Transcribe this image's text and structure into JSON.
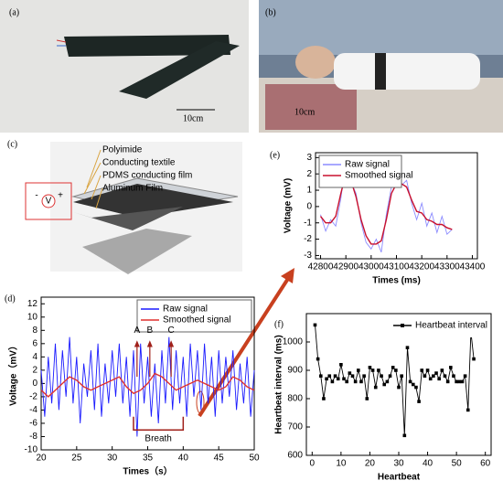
{
  "photos": {
    "a": {
      "label": "(a)",
      "scale": "10cm"
    },
    "b": {
      "label": "(b)",
      "scale": "10cm"
    }
  },
  "diagram": {
    "label": "(c)",
    "layers": [
      "Polyimide",
      "Conducting textile",
      "PDMS conducting film",
      "Aluminum Film"
    ],
    "meter": [
      "-",
      "V",
      "+"
    ]
  },
  "chart_data": [
    {
      "type": "line",
      "label": "(d)",
      "xlabel": "Times（s）",
      "ylabel": "Voltage（mV）",
      "xlim": [
        20,
        50
      ],
      "xticks": [
        20,
        25,
        30,
        35,
        40,
        45,
        50
      ],
      "ylim": [
        -10,
        13
      ],
      "yticks": [
        -10,
        -8,
        -6,
        -4,
        -2,
        0,
        2,
        4,
        6,
        8,
        10,
        12
      ],
      "legend": "upper right",
      "annotations": [
        "A",
        "B",
        "C",
        "Breath"
      ],
      "series": [
        {
          "name": "Raw signal",
          "color": "#1a1aff",
          "x": [
            20,
            20.5,
            21,
            21.5,
            22,
            22.5,
            23,
            23.5,
            24,
            24.5,
            25,
            25.5,
            26,
            26.5,
            27,
            27.5,
            28,
            28.5,
            29,
            29.5,
            30,
            30.5,
            31,
            31.5,
            32,
            32.5,
            33,
            33.5,
            34,
            34.5,
            35,
            35.5,
            36,
            36.5,
            37,
            37.5,
            38,
            38.5,
            39,
            39.5,
            40,
            40.5,
            41,
            41.5,
            42,
            42.5,
            43,
            43.5,
            44,
            44.5,
            45,
            45.5,
            46,
            46.5,
            47,
            47.5,
            48,
            48.5,
            49,
            49.5,
            50
          ],
          "values": [
            2,
            -5,
            4,
            -3,
            6,
            -4,
            5,
            -2,
            7,
            -3,
            4,
            -6,
            3,
            -2,
            5,
            -4,
            6,
            -5,
            3,
            -3,
            5,
            -2,
            6,
            -3,
            4,
            -5,
            5,
            -8,
            6,
            -3,
            4,
            -5,
            3,
            -6,
            5,
            -3,
            7,
            -4,
            5,
            -3,
            4,
            -5,
            6,
            -2,
            5,
            -4,
            6,
            -3,
            4,
            -5,
            5,
            -3,
            4,
            -2,
            5,
            -4,
            3,
            -3,
            4,
            -5,
            2
          ]
        },
        {
          "name": "Smoothed signal",
          "color": "#e0312e",
          "x": [
            20,
            21,
            22,
            23,
            24,
            25,
            26,
            27,
            28,
            29,
            30,
            31,
            32,
            33,
            34,
            35,
            36,
            37,
            38,
            39,
            40,
            41,
            42,
            43,
            44,
            45,
            46,
            47,
            48,
            49,
            50
          ],
          "values": [
            -1,
            -2,
            -1,
            0,
            1,
            0.5,
            -0.5,
            -1,
            -0.5,
            0,
            0.5,
            1,
            -0.5,
            -1.5,
            -1,
            0,
            1.5,
            1,
            0,
            -1,
            -0.5,
            0,
            0.5,
            0,
            -0.5,
            -1,
            -0.5,
            1,
            0.5,
            -0.5,
            -1
          ]
        }
      ]
    },
    {
      "type": "line",
      "label": "(e)",
      "xlabel": "Times (ms)",
      "ylabel": "Voltage (mV)",
      "xlim": [
        42780,
        43420
      ],
      "xticks": [
        42800,
        42900,
        43000,
        43100,
        43200,
        43300,
        43400
      ],
      "ylim": [
        -3.2,
        3.3
      ],
      "yticks": [
        -3,
        -2,
        -1,
        0,
        1,
        2,
        3
      ],
      "legend": "upper left",
      "series": [
        {
          "name": "Raw signal",
          "color": "#8c8cff",
          "x": [
            42800,
            42820,
            42840,
            42860,
            42880,
            42900,
            42920,
            42940,
            42960,
            42980,
            43000,
            43020,
            43040,
            43060,
            43080,
            43100,
            43120,
            43140,
            43160,
            43180,
            43200,
            43220,
            43240,
            43260,
            43280,
            43300,
            43320
          ],
          "values": [
            -0.5,
            -1.5,
            -0.8,
            -1.2,
            0.5,
            2.8,
            1.5,
            0.8,
            -1.0,
            -2.2,
            -2.6,
            -2.0,
            -2.8,
            -0.5,
            1.2,
            1.8,
            1.3,
            1.6,
            0.2,
            -0.8,
            0.2,
            -1.2,
            -0.4,
            -1.6,
            -0.6,
            -1.7,
            -1.4
          ]
        },
        {
          "name": "Smoothed signal",
          "color": "#c8102e",
          "x": [
            42800,
            42820,
            42840,
            42860,
            42880,
            42900,
            42920,
            42940,
            42960,
            42980,
            43000,
            43020,
            43040,
            43060,
            43080,
            43100,
            43120,
            43140,
            43160,
            43180,
            43200,
            43220,
            43240,
            43260,
            43280,
            43300,
            43320
          ],
          "values": [
            -0.6,
            -1.0,
            -1.0,
            -0.6,
            0.8,
            2.0,
            1.6,
            0.6,
            -0.8,
            -1.8,
            -2.3,
            -2.3,
            -2.1,
            -0.8,
            0.8,
            1.4,
            1.4,
            1.2,
            0.4,
            -0.3,
            -0.4,
            -0.8,
            -0.9,
            -1.1,
            -1.1,
            -1.3,
            -1.4
          ]
        }
      ]
    },
    {
      "type": "marker-line",
      "label": "(f)",
      "xlabel": "Heartbeat",
      "ylabel": "Heartbeat interval (ms)",
      "xlim": [
        -2,
        62
      ],
      "xticks": [
        0,
        10,
        20,
        30,
        40,
        50,
        60
      ],
      "ylim": [
        600,
        1100
      ],
      "yticks": [
        600,
        700,
        800,
        900,
        1000
      ],
      "legend": "upper right",
      "series": [
        {
          "name": "Heartbeat interval",
          "color": "#000000",
          "x": [
            1,
            2,
            3,
            4,
            5,
            6,
            7,
            8,
            9,
            10,
            11,
            12,
            13,
            14,
            15,
            16,
            17,
            18,
            19,
            20,
            21,
            22,
            23,
            24,
            25,
            26,
            27,
            28,
            29,
            30,
            31,
            32,
            33,
            34,
            35,
            36,
            37,
            38,
            39,
            40,
            41,
            42,
            43,
            44,
            45,
            46,
            47,
            48,
            49,
            50,
            51,
            52,
            53,
            54,
            55,
            56
          ],
          "values": [
            1060,
            940,
            880,
            800,
            870,
            880,
            860,
            880,
            870,
            920,
            870,
            860,
            890,
            880,
            860,
            900,
            860,
            880,
            800,
            910,
            900,
            840,
            900,
            880,
            850,
            860,
            880,
            910,
            900,
            840,
            880,
            670,
            980,
            860,
            850,
            840,
            790,
            900,
            880,
            900,
            870,
            880,
            890,
            870,
            900,
            880,
            860,
            910,
            880,
            860,
            860,
            860,
            880,
            760,
            1035,
            940
          ]
        }
      ]
    }
  ]
}
